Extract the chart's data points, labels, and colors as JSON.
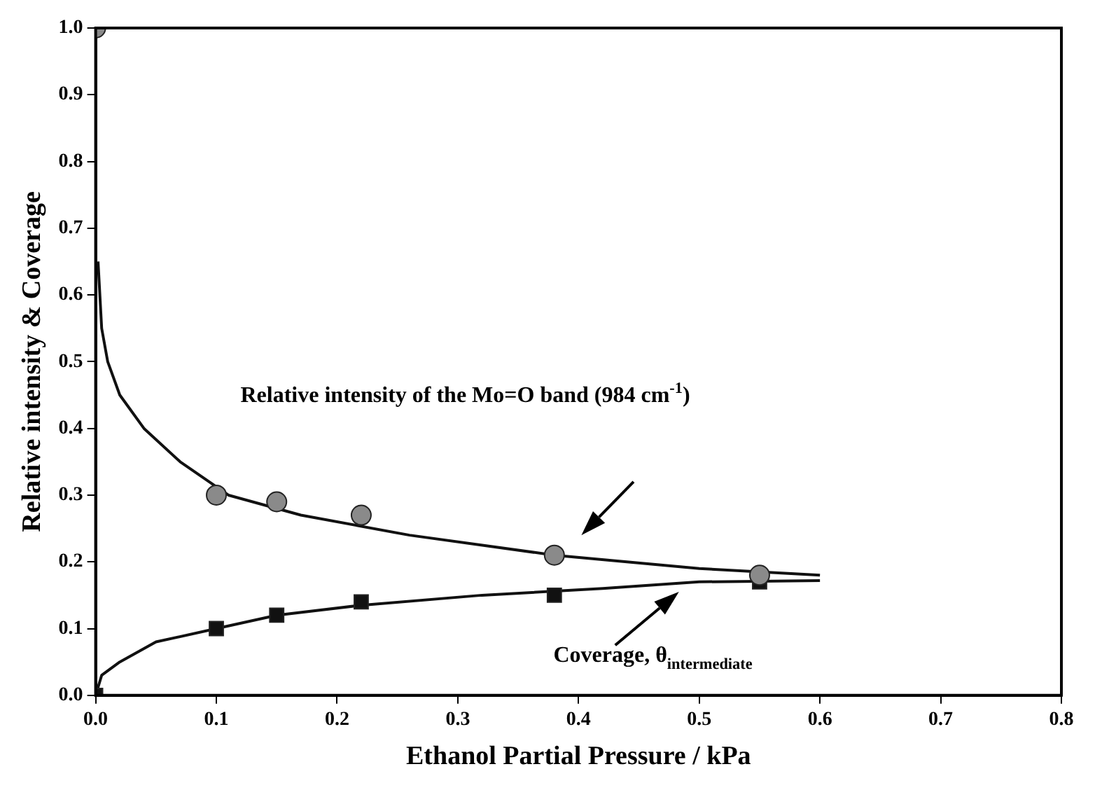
{
  "chart_data": {
    "type": "scatter",
    "xlabel": "Ethanol Partial Pressure / kPa",
    "ylabel": "Relative intensity & Coverage",
    "xlim": [
      0,
      0.8
    ],
    "ylim": [
      0,
      1
    ],
    "xticks": [
      {
        "value": 0,
        "label": "0.0"
      },
      0.1,
      0.2,
      0.3,
      0.4,
      0.5,
      0.6,
      0.7,
      0.8
    ],
    "yticks": [
      {
        "value": 0,
        "label": "0.0"
      },
      0.1,
      0.2,
      0.3,
      0.4,
      0.5,
      0.6,
      0.7,
      0.8,
      0.9,
      {
        "value": 1,
        "label": "1.0"
      }
    ],
    "grid": false,
    "legend": false,
    "series": [
      {
        "type": "scatter",
        "marker": "circle",
        "color": "#8a8a8a",
        "x": [
          0,
          0.1,
          0.15,
          0.22,
          0.38,
          0.55
        ],
        "values": [
          1.0,
          0.3,
          0.29,
          0.27,
          0.21,
          0.18
        ]
      },
      {
        "type": "scatter",
        "marker": "square",
        "color": "#111111",
        "x": [
          0,
          0.1,
          0.15,
          0.22,
          0.38,
          0.55
        ],
        "values": [
          0,
          0.1,
          0.12,
          0.14,
          0.15,
          0.17
        ]
      },
      {
        "type": "line",
        "marker": "none",
        "color": "#111111",
        "x": [
          0.002,
          0.005,
          0.01,
          0.02,
          0.04,
          0.07,
          0.11,
          0.17,
          0.26,
          0.38,
          0.5,
          0.6
        ],
        "values": [
          0.65,
          0.55,
          0.5,
          0.45,
          0.4,
          0.35,
          0.3,
          0.27,
          0.24,
          0.21,
          0.19,
          0.18
        ]
      },
      {
        "type": "line",
        "marker": "none",
        "color": "#111111",
        "x": [
          0,
          0.005,
          0.02,
          0.05,
          0.1,
          0.15,
          0.22,
          0.32,
          0.42,
          0.5,
          0.6
        ],
        "values": [
          0,
          0.03,
          0.05,
          0.08,
          0.1,
          0.12,
          0.135,
          0.15,
          0.16,
          0.17,
          0.172
        ]
      }
    ],
    "annotations": [
      "Relative intensity of the Mo=O band (984 cm$^{-1}$)",
      "Coverage, θ$_{intermediate}$"
    ]
  }
}
